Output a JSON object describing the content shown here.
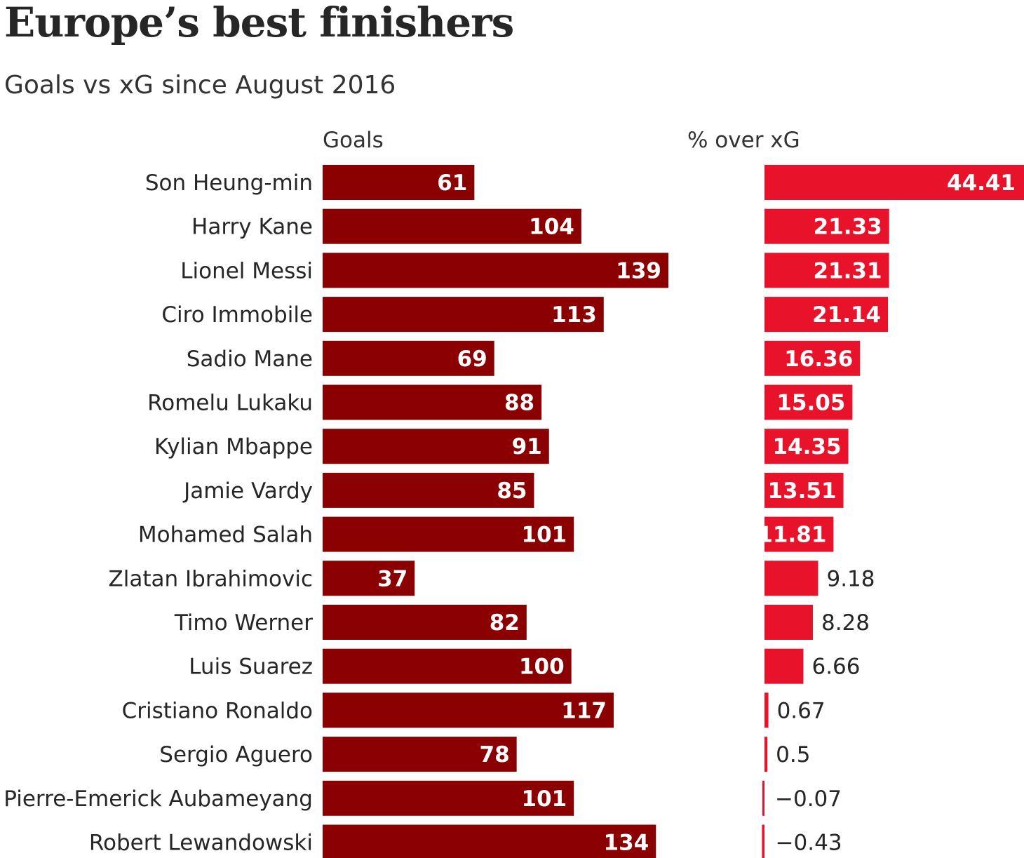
{
  "title": "Europe’s best finishers",
  "subtitle": "Goals vs xG since August 2016",
  "colors": {
    "goals_bar": "#8b0000",
    "pct_bar": "#e8132a",
    "text": "#262626"
  },
  "chart_data": [
    {
      "type": "bar",
      "orientation": "horizontal",
      "column_label": "Goals",
      "categories": [
        "Son Heung-min",
        "Harry Kane",
        "Lionel Messi",
        "Ciro Immobile",
        "Sadio Mane",
        "Romelu Lukaku",
        "Kylian Mbappe",
        "Jamie Vardy",
        "Mohamed Salah",
        "Zlatan Ibrahimovic",
        "Timo Werner",
        "Luis Suarez",
        "Cristiano Ronaldo",
        "Sergio Aguero",
        "Pierre-Emerick Aubameyang",
        "Robert Lewandowski"
      ],
      "values": [
        61,
        104,
        139,
        113,
        69,
        88,
        91,
        85,
        101,
        37,
        82,
        100,
        117,
        78,
        101,
        134
      ],
      "labels": [
        "61",
        "104",
        "139",
        "113",
        "69",
        "88",
        "91",
        "85",
        "101",
        "37",
        "82",
        "100",
        "117",
        "78",
        "101",
        "134"
      ],
      "xlim": [
        0,
        139
      ]
    },
    {
      "type": "bar",
      "orientation": "horizontal",
      "column_label": "% over xG",
      "categories": [
        "Son Heung-min",
        "Harry Kane",
        "Lionel Messi",
        "Ciro Immobile",
        "Sadio Mane",
        "Romelu Lukaku",
        "Kylian Mbappe",
        "Jamie Vardy",
        "Mohamed Salah",
        "Zlatan Ibrahimovic",
        "Timo Werner",
        "Luis Suarez",
        "Cristiano Ronaldo",
        "Sergio Aguero",
        "Pierre-Emerick Aubameyang",
        "Robert Lewandowski"
      ],
      "values": [
        44.41,
        21.33,
        21.31,
        21.14,
        16.36,
        15.05,
        14.35,
        13.51,
        11.81,
        9.18,
        8.28,
        6.66,
        0.67,
        0.5,
        -0.07,
        -0.43
      ],
      "labels": [
        "44.41",
        "21.33",
        "21.31",
        "21.14",
        "16.36",
        "15.05",
        "14.35",
        "13.51",
        "11.81",
        "9.18",
        "8.28",
        "6.66",
        "0.67",
        "0.5",
        "−0.07",
        "−0.43"
      ],
      "xlim": [
        0,
        44.41
      ]
    }
  ]
}
